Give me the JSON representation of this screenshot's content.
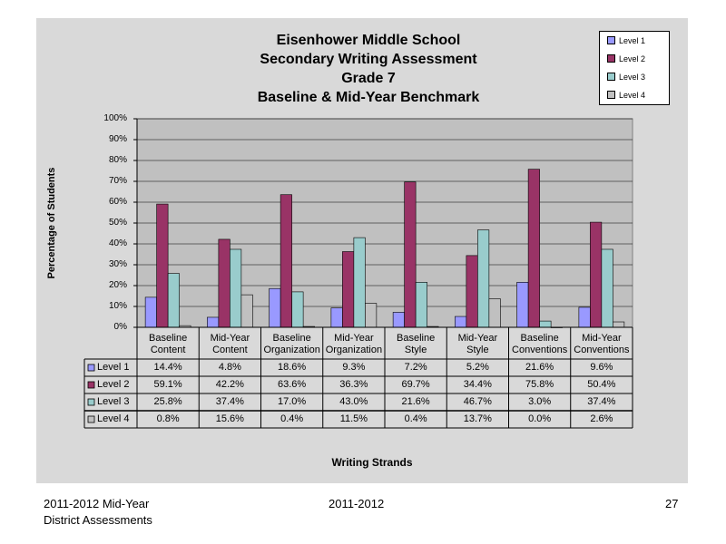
{
  "chart_data": {
    "type": "bar",
    "title_lines": [
      "Eisenhower Middle School",
      "Secondary Writing Assessment",
      "Grade 7",
      "Baseline & Mid-Year Benchmark"
    ],
    "xlabel": "Writing Strands",
    "ylabel": "Percentage of Students",
    "ylim": [
      0,
      100
    ],
    "yticks": [
      "0%",
      "10%",
      "20%",
      "30%",
      "40%",
      "50%",
      "60%",
      "70%",
      "80%",
      "90%",
      "100%"
    ],
    "categories": [
      [
        "Baseline",
        "Content"
      ],
      [
        "Mid-Year",
        "Content"
      ],
      [
        "Baseline",
        "Organization"
      ],
      [
        "Mid-Year",
        "Organization"
      ],
      [
        "Baseline",
        "Style"
      ],
      [
        "Mid-Year",
        "Style"
      ],
      [
        "Baseline",
        "Conventions"
      ],
      [
        "Mid-Year",
        "Conventions"
      ]
    ],
    "series": [
      {
        "name": "Level 1",
        "color": "#9999ff",
        "values": [
          14.4,
          4.8,
          18.6,
          9.3,
          7.2,
          5.2,
          21.6,
          9.6
        ],
        "labels": [
          "14.4%",
          "4.8%",
          "18.6%",
          "9.3%",
          "7.2%",
          "5.2%",
          "21.6%",
          "9.6%"
        ]
      },
      {
        "name": "Level 2",
        "color": "#993366",
        "values": [
          59.1,
          42.2,
          63.6,
          36.3,
          69.7,
          34.4,
          75.8,
          50.4
        ],
        "labels": [
          "59.1%",
          "42.2%",
          "63.6%",
          "36.3%",
          "69.7%",
          "34.4%",
          "75.8%",
          "50.4%"
        ]
      },
      {
        "name": "Level 3",
        "color": "#99cccc",
        "values": [
          25.8,
          37.4,
          17.0,
          43.0,
          21.6,
          46.7,
          3.0,
          37.4
        ],
        "labels": [
          "25.8%",
          "37.4%",
          "17.0%",
          "43.0%",
          "21.6%",
          "46.7%",
          "3.0%",
          "37.4%"
        ]
      },
      {
        "name": "Level 4",
        "color": "#c0c0c0",
        "values": [
          0.8,
          15.6,
          0.4,
          11.5,
          0.4,
          13.7,
          0.0,
          2.6
        ],
        "labels": [
          "0.8%",
          "15.6%",
          "0.4%",
          "11.5%",
          "0.4%",
          "13.7%",
          "0.0%",
          "2.6%"
        ]
      }
    ],
    "grid": true,
    "legend_position": "top-right"
  },
  "footer": {
    "left_line1": "2011-2012  Mid-Year",
    "left_line2": "District Assessments",
    "center": "2011-2012",
    "right": "27"
  }
}
